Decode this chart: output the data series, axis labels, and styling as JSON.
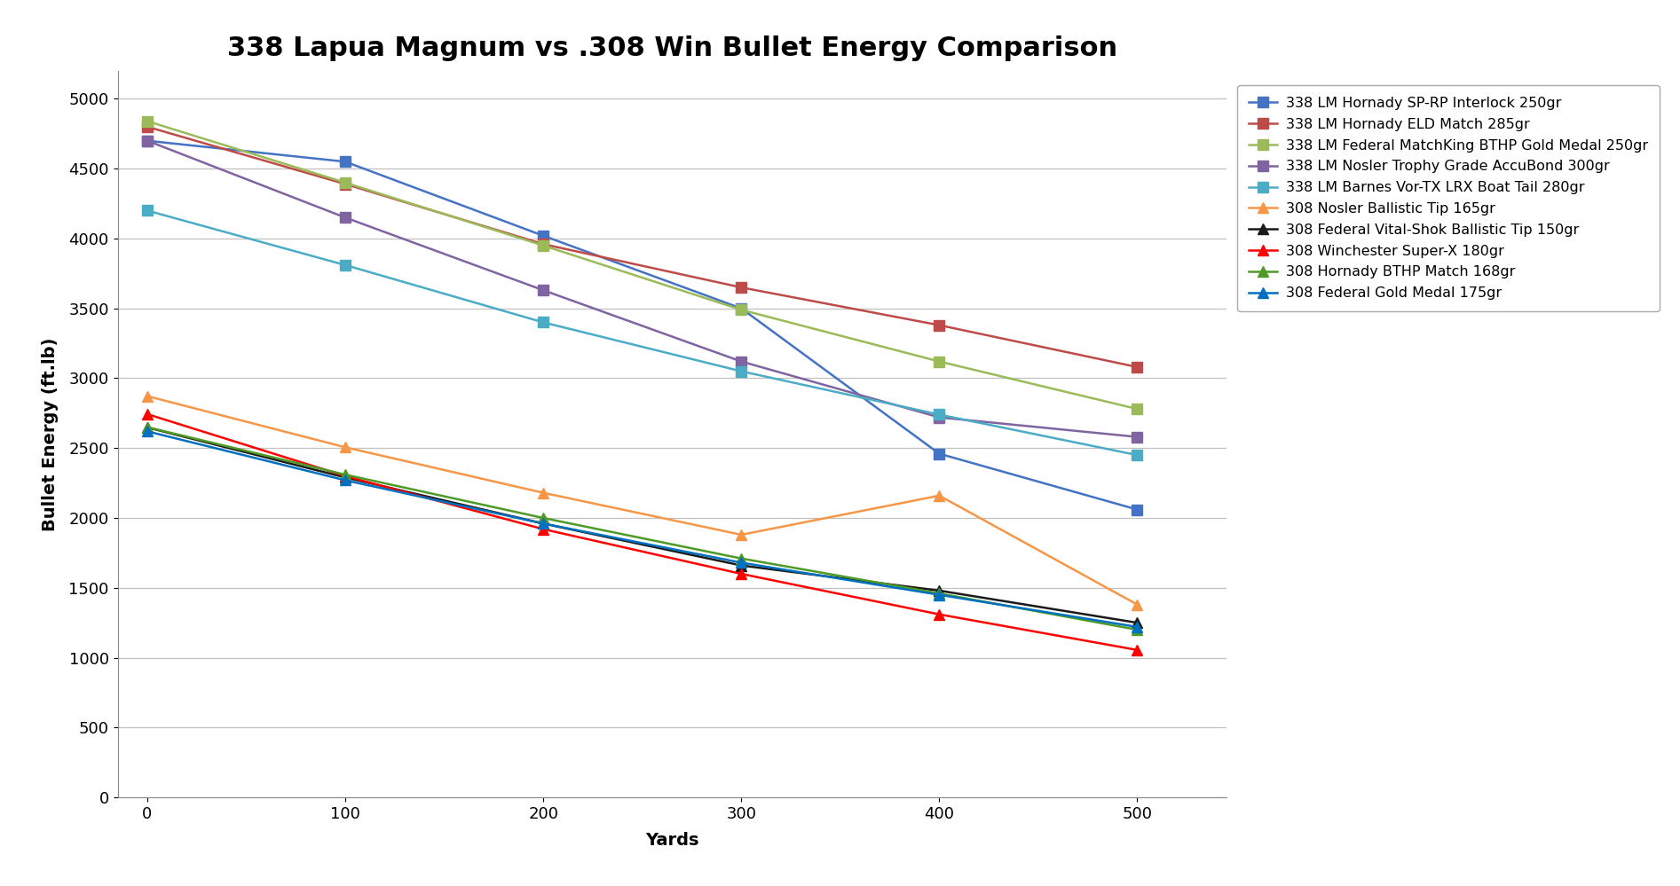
{
  "title": "338 Lapua Magnum vs .308 Win Bullet Energy Comparison",
  "xlabel": "Yards",
  "ylabel": "Bullet Energy (ft.lb)",
  "xlim": [
    -15,
    545
  ],
  "ylim": [
    0,
    5200
  ],
  "yticks": [
    0,
    500,
    1000,
    1500,
    2000,
    2500,
    3000,
    3500,
    4000,
    4500,
    5000
  ],
  "xticks": [
    0,
    100,
    200,
    300,
    400,
    500
  ],
  "series": [
    {
      "label": "338 LM Hornady SP-RP Interlock 250gr",
      "x": [
        0,
        100,
        200,
        300,
        400,
        500
      ],
      "y": [
        4700,
        4550,
        4020,
        3500,
        2460,
        2060
      ],
      "color": "#4472C4",
      "marker": "s",
      "markersize": 9,
      "linewidth": 1.8
    },
    {
      "label": "338 LM Hornady ELD Match 285gr",
      "x": [
        0,
        100,
        200,
        300,
        400,
        500
      ],
      "y": [
        4800,
        4390,
        3960,
        3650,
        3380,
        3080
      ],
      "color": "#BE4B48",
      "marker": "s",
      "markersize": 9,
      "linewidth": 1.8
    },
    {
      "label": "338 LM Federal MatchKing BTHP Gold Medal 250gr",
      "x": [
        0,
        100,
        200,
        300,
        400,
        500
      ],
      "y": [
        4840,
        4400,
        3950,
        3490,
        3120,
        2780
      ],
      "color": "#9BBB59",
      "marker": "s",
      "markersize": 9,
      "linewidth": 1.8
    },
    {
      "label": "338 LM Nosler Trophy Grade AccuBond 300gr",
      "x": [
        0,
        100,
        200,
        300,
        400,
        500
      ],
      "y": [
        4700,
        4150,
        3630,
        3120,
        2720,
        2580
      ],
      "color": "#8064A2",
      "marker": "s",
      "markersize": 9,
      "linewidth": 1.8
    },
    {
      "label": "338 LM Barnes Vor-TX LRX Boat Tail 280gr",
      "x": [
        0,
        100,
        200,
        300,
        400,
        500
      ],
      "y": [
        4200,
        3810,
        3400,
        3050,
        2740,
        2450
      ],
      "color": "#4BACC6",
      "marker": "s",
      "markersize": 9,
      "linewidth": 1.8
    },
    {
      "label": "308 Nosler Ballistic Tip 165gr",
      "x": [
        0,
        100,
        200,
        300,
        400,
        500
      ],
      "y": [
        2872,
        2506,
        2180,
        1880,
        2160,
        1380
      ],
      "color": "#F79646",
      "marker": "^",
      "markersize": 9,
      "linewidth": 1.8
    },
    {
      "label": "308 Federal Vital-Shok Ballistic Tip 150gr",
      "x": [
        0,
        100,
        200,
        300,
        400,
        500
      ],
      "y": [
        2648,
        2290,
        1960,
        1660,
        1480,
        1250
      ],
      "color": "#1A1A1A",
      "marker": "^",
      "markersize": 9,
      "linewidth": 1.8
    },
    {
      "label": "308 Winchester Super-X 180gr",
      "x": [
        0,
        100,
        200,
        300,
        400,
        500
      ],
      "y": [
        2743,
        2300,
        1920,
        1600,
        1310,
        1055
      ],
      "color": "#FF0000",
      "marker": "^",
      "markersize": 9,
      "linewidth": 1.8
    },
    {
      "label": "308 Hornady BTHP Match 168gr",
      "x": [
        0,
        100,
        200,
        300,
        400,
        500
      ],
      "y": [
        2650,
        2310,
        2000,
        1710,
        1460,
        1200
      ],
      "color": "#4E9A27",
      "marker": "^",
      "markersize": 9,
      "linewidth": 1.8
    },
    {
      "label": "308 Federal Gold Medal 175gr",
      "x": [
        0,
        100,
        200,
        300,
        400,
        500
      ],
      "y": [
        2620,
        2270,
        1960,
        1680,
        1450,
        1220
      ],
      "color": "#0070C0",
      "marker": "^",
      "markersize": 9,
      "linewidth": 1.8
    }
  ],
  "background_color": "#FFFFFF",
  "grid_color": "#C0C0C0",
  "title_fontsize": 22,
  "axis_label_fontsize": 14,
  "tick_fontsize": 13,
  "legend_fontsize": 11.5
}
